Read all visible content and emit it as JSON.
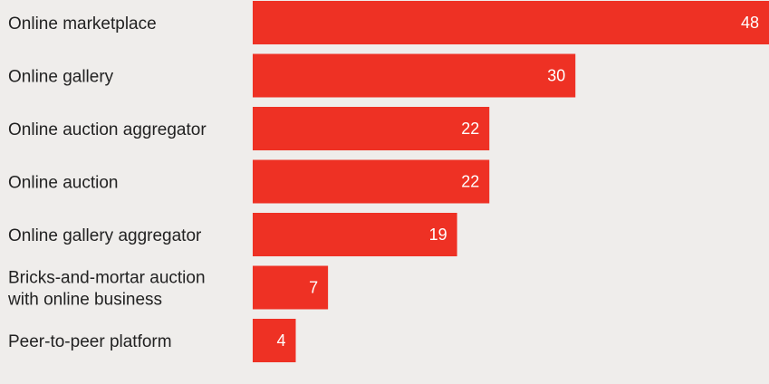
{
  "chart_data": {
    "type": "bar",
    "orientation": "horizontal",
    "categories": [
      [
        "Online marketplace"
      ],
      [
        "Online gallery"
      ],
      [
        "Online auction aggregator"
      ],
      [
        "Online auction"
      ],
      [
        "Online gallery aggregator"
      ],
      [
        "Bricks-and-mortar auction",
        "with online business"
      ],
      [
        "Peer-to-peer platform"
      ]
    ],
    "values": [
      48,
      30,
      22,
      22,
      19,
      7,
      4
    ],
    "xlim": [
      0,
      48
    ],
    "grid": false,
    "legend": "none",
    "colors": {
      "bar": "#ee3124",
      "background": "#efedeb",
      "label": "#222222",
      "value_label": "#ffffff"
    }
  }
}
